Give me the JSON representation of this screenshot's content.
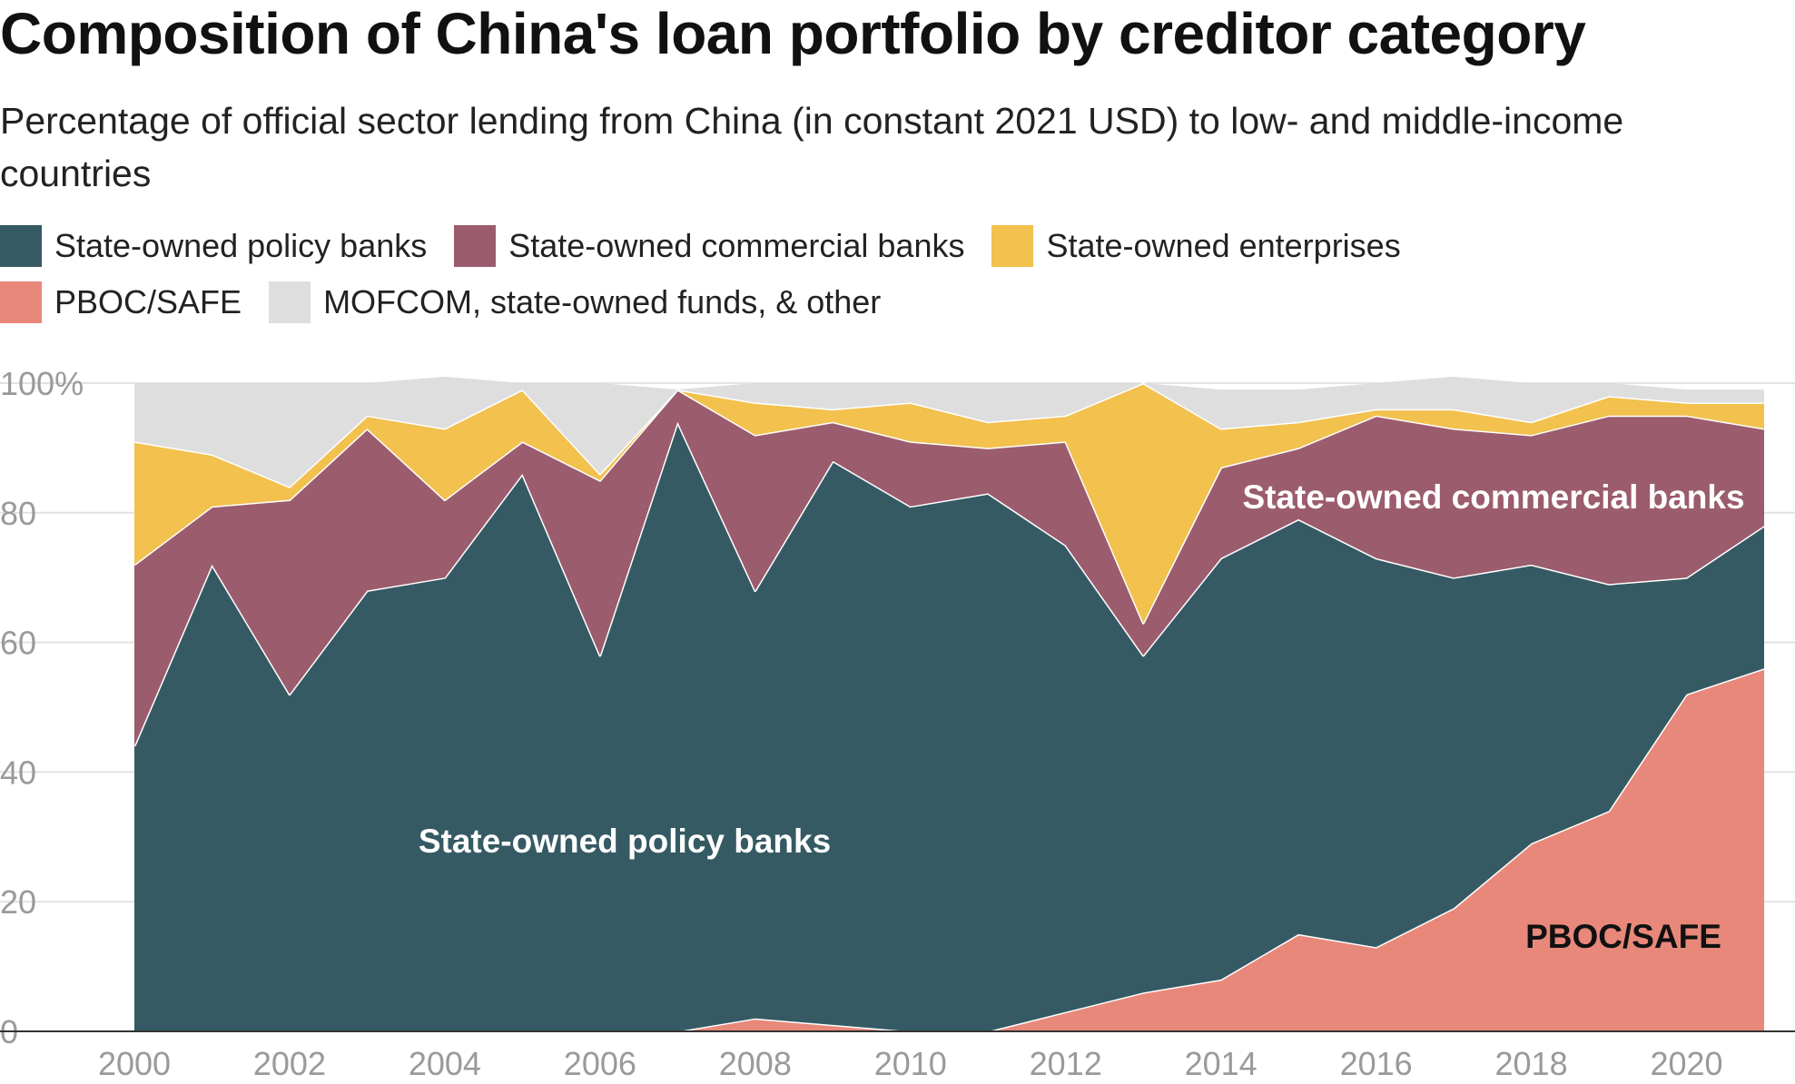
{
  "chart_data": {
    "type": "area",
    "stacked": true,
    "title": "Composition of China's loan portfolio by creditor category",
    "subtitle": "Percentage of official sector lending from China (in constant 2021 USD) to low- and middle-income countries",
    "x": [
      2000,
      2001,
      2002,
      2003,
      2004,
      2005,
      2006,
      2007,
      2008,
      2009,
      2010,
      2011,
      2012,
      2013,
      2014,
      2015,
      2016,
      2017,
      2018,
      2019,
      2020,
      2021
    ],
    "x_ticks": [
      "2000",
      "2002",
      "2004",
      "2006",
      "2008",
      "2010",
      "2012",
      "2014",
      "2016",
      "2018",
      "2020"
    ],
    "y_ticks": [
      "0",
      "20",
      "40",
      "60",
      "80",
      "100%"
    ],
    "ylim": [
      0,
      100
    ],
    "series": [
      {
        "name": "PBOC/SAFE",
        "color": "#e8887a",
        "values": [
          0,
          0,
          0,
          0,
          0,
          0,
          0,
          0,
          2,
          1,
          0,
          0,
          3,
          6,
          8,
          15,
          13,
          19,
          29,
          34,
          52,
          56
        ]
      },
      {
        "name": "State-owned policy banks",
        "color": "#355a63",
        "values": [
          44,
          72,
          52,
          68,
          70,
          86,
          58,
          94,
          66,
          87,
          81,
          83,
          72,
          52,
          65,
          64,
          60,
          51,
          43,
          35,
          18,
          22
        ]
      },
      {
        "name": "State-owned commercial banks",
        "color": "#9b5c6e",
        "values": [
          28,
          9,
          30,
          25,
          12,
          5,
          27,
          5,
          24,
          6,
          10,
          7,
          16,
          5,
          14,
          11,
          22,
          23,
          20,
          26,
          25,
          15
        ]
      },
      {
        "name": "State-owned enterprises",
        "color": "#f2c14e",
        "values": [
          19,
          8,
          2,
          2,
          11,
          8,
          1,
          0,
          5,
          2,
          6,
          4,
          4,
          37,
          6,
          4,
          1,
          3,
          2,
          3,
          2,
          4
        ]
      },
      {
        "name": "MOFCOM, state-owned funds, & other",
        "color": "#dedede",
        "values": [
          9,
          11,
          16,
          5,
          8,
          1,
          14,
          0,
          3,
          4,
          3,
          6,
          5,
          0,
          6,
          5,
          4,
          5,
          6,
          2,
          2,
          2
        ]
      }
    ],
    "legend_order": [
      "State-owned policy banks",
      "State-owned commercial banks",
      "State-owned enterprises",
      "PBOC/SAFE",
      "MOFCOM, state-owned funds, & other"
    ],
    "legend_position": "top-left",
    "grid": false,
    "annotations": [
      {
        "text": "State-owned commercial banks",
        "color": "#ffffff"
      },
      {
        "text": "State-owned policy banks",
        "color": "#ffffff"
      },
      {
        "text": "PBOC/SAFE",
        "color": "#111111"
      }
    ]
  }
}
